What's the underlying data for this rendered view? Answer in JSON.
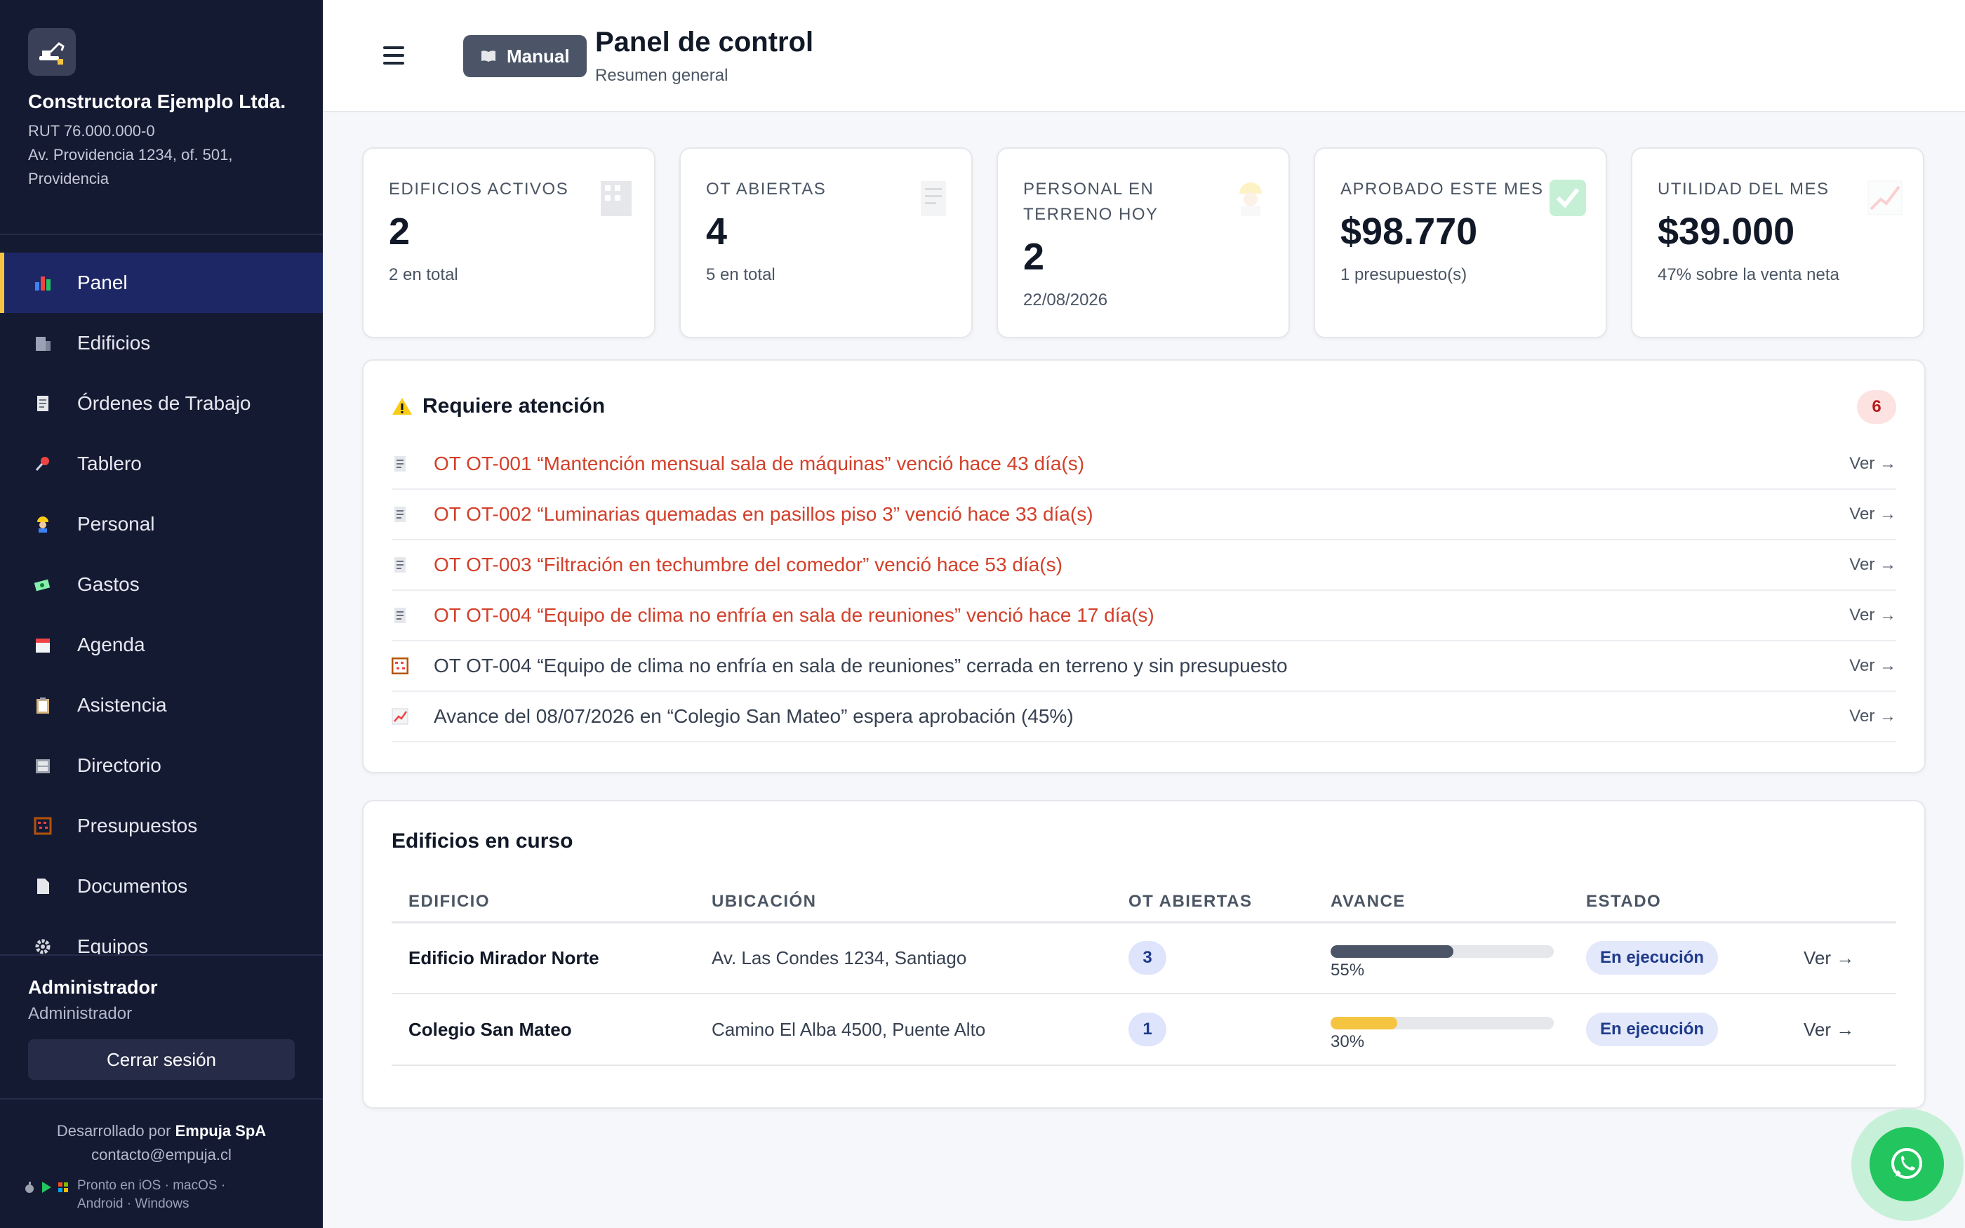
{
  "sidebar": {
    "company": "Constructora Ejemplo Ltda.",
    "rut": "RUT 76.000.000-0",
    "address": "Av. Providencia 1234, of. 501, Providencia",
    "nav": [
      {
        "label": "Panel",
        "icon": "bar-chart-icon",
        "active": true
      },
      {
        "label": "Edificios",
        "icon": "building-icon"
      },
      {
        "label": "Órdenes de Trabajo",
        "icon": "receipt-icon"
      },
      {
        "label": "Tablero",
        "icon": "pushpin-icon"
      },
      {
        "label": "Personal",
        "icon": "worker-icon"
      },
      {
        "label": "Gastos",
        "icon": "money-icon"
      },
      {
        "label": "Agenda",
        "icon": "calendar-icon"
      },
      {
        "label": "Asistencia",
        "icon": "clipboard-icon"
      },
      {
        "label": "Directorio",
        "icon": "cabinet-icon"
      },
      {
        "label": "Presupuestos",
        "icon": "abacus-icon"
      },
      {
        "label": "Documentos",
        "icon": "document-icon"
      },
      {
        "label": "Equipos",
        "icon": "gear-icon"
      }
    ],
    "user": {
      "name": "Administrador",
      "role": "Administrador"
    },
    "logout_label": "Cerrar sesión",
    "footer": {
      "developed_prefix": "Desarrollado por",
      "developer": "Empuja SpA",
      "email": "contacto@empuja.cl",
      "platforms_line1": "Pronto en iOS · macOS ·",
      "platforms_line2": "Android · Windows"
    }
  },
  "header": {
    "manual_label": "Manual",
    "title": "Panel de control",
    "subtitle": "Resumen general"
  },
  "stats": [
    {
      "label": "EDIFICIOS ACTIVOS",
      "value": "2",
      "sub": "2 en total",
      "icon": "building-icon"
    },
    {
      "label": "OT ABIERTAS",
      "value": "4",
      "sub": "5 en total",
      "icon": "receipt-icon"
    },
    {
      "label": "PERSONAL EN TERRENO HOY",
      "value": "2",
      "sub": "22/08/2026",
      "icon": "worker-icon"
    },
    {
      "label": "APROBADO ESTE MES",
      "value": "$98.770",
      "sub": "1 presupuesto(s)",
      "icon": "check-icon"
    },
    {
      "label": "UTILIDAD DEL MES",
      "value": "$39.000",
      "sub": "47% sobre la venta neta",
      "icon": "trend-up-icon"
    }
  ],
  "attention": {
    "title": "Requiere atención",
    "count": "6",
    "items": [
      {
        "text": "OT OT-001 “Mantención mensual sala de máquinas” venció hace 43 día(s)",
        "icon": "receipt-icon",
        "overdue": true,
        "action": "Ver →"
      },
      {
        "text": "OT OT-002 “Luminarias quemadas en pasillos piso 3” venció hace 33 día(s)",
        "icon": "receipt-icon",
        "overdue": true,
        "action": "Ver →"
      },
      {
        "text": "OT OT-003 “Filtración en techumbre del comedor” venció hace 53 día(s)",
        "icon": "receipt-icon",
        "overdue": true,
        "action": "Ver →"
      },
      {
        "text": "OT OT-004 “Equipo de clima no enfría en sala de reuniones” venció hace 17 día(s)",
        "icon": "receipt-icon",
        "overdue": true,
        "action": "Ver →"
      },
      {
        "text": "OT OT-004 “Equipo de clima no enfría en sala de reuniones” cerrada en terreno y sin presupuesto",
        "icon": "abacus-icon",
        "overdue": false,
        "action": "Ver →"
      },
      {
        "text": "Avance del 08/07/2026 en “Colegio San Mateo” espera aprobación (45%)",
        "icon": "trend-up-icon",
        "overdue": false,
        "action": "Ver →"
      }
    ]
  },
  "buildings": {
    "title": "Edificios en curso",
    "columns": [
      "EDIFICIO",
      "UBICACIÓN",
      "OT ABIERTAS",
      "AVANCE",
      "ESTADO"
    ],
    "rows": [
      {
        "name": "Edificio Mirador Norte",
        "location": "Av. Las Condes 1234, Santiago",
        "open_ot": "3",
        "progress": 55,
        "progress_label": "55%",
        "progress_color": "#4b5567",
        "status": "En ejecución",
        "action": "Ver →"
      },
      {
        "name": "Colegio San Mateo",
        "location": "Camino El Alba 4500, Puente Alto",
        "open_ot": "1",
        "progress": 30,
        "progress_label": "30%",
        "progress_color": "#f5c542",
        "status": "En ejecución",
        "action": "Ver →"
      }
    ]
  },
  "colors": {
    "sidebar_bg": "#151a33",
    "accent": "#f5c542",
    "danger": "#d2402a",
    "whatsapp": "#22c55e"
  }
}
